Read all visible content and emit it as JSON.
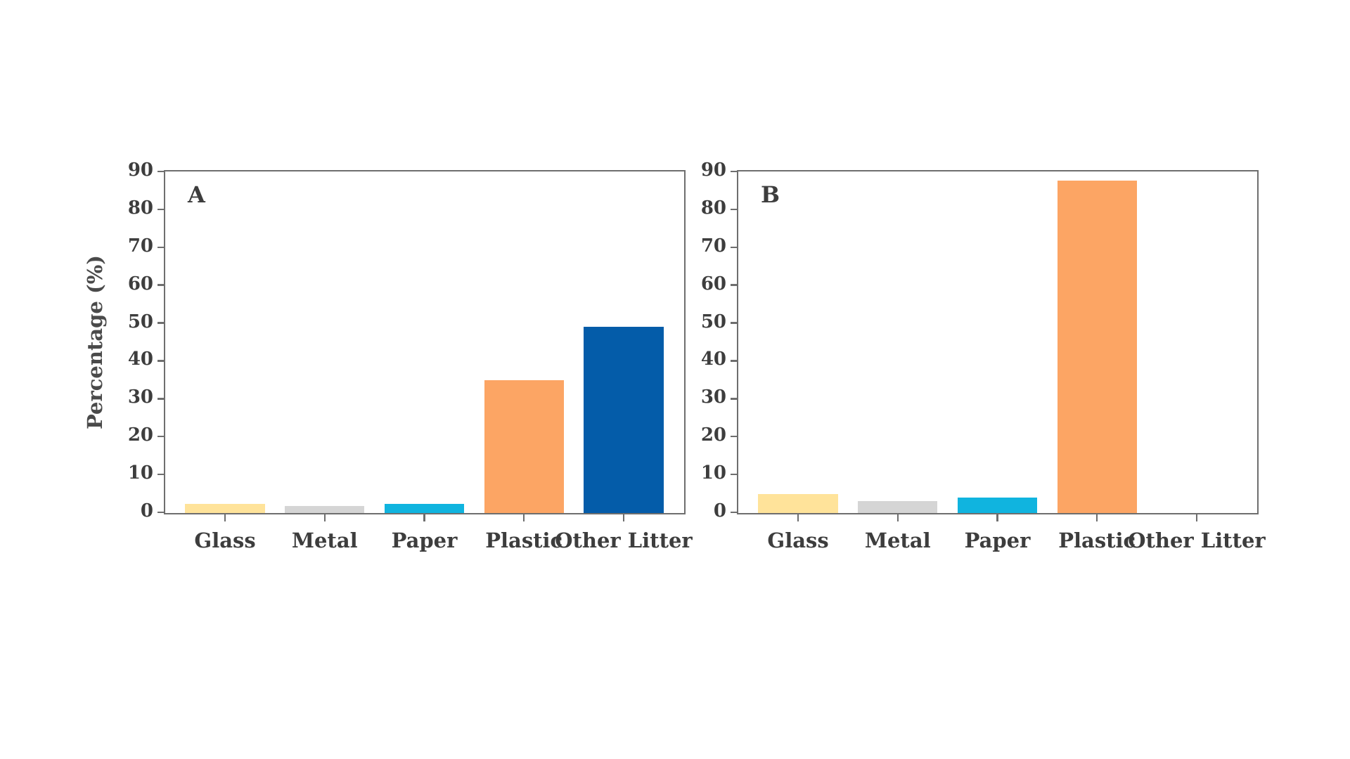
{
  "figure": {
    "y_axis_title": "Percentage (%)",
    "background_color": "#ffffff",
    "text_color": "#3d3d3d",
    "spine_color": "#6e6e6e"
  },
  "chart_data": [
    {
      "type": "bar",
      "panel_label": "A",
      "ylabel": "Percentage (%)",
      "xlabel": "",
      "categories": [
        "Glass",
        "Metal",
        "Paper",
        "Plastic",
        "Other Litter"
      ],
      "values": [
        2.4,
        1.9,
        2.4,
        35.1,
        49.2
      ],
      "bar_colors": [
        "#FFE39A",
        "#D5D5D5",
        "#10B4DF",
        "#FCA564",
        "#045CA9"
      ],
      "ylim": [
        0,
        90
      ],
      "ytick_step": 10,
      "ytick_labels": [
        "0",
        "10",
        "20",
        "30",
        "40",
        "50",
        "60",
        "70",
        "80",
        "90"
      ],
      "grid": false,
      "legend": false
    },
    {
      "type": "bar",
      "panel_label": "B",
      "ylabel": "",
      "xlabel": "",
      "categories": [
        "Glass",
        "Metal",
        "Paper",
        "Plastic",
        "Other Litter"
      ],
      "values": [
        5.1,
        3.1,
        4.1,
        87.7,
        0
      ],
      "bar_colors": [
        "#FFE39A",
        "#D5D5D5",
        "#10B4DF",
        "#FCA564",
        "#045CA9"
      ],
      "ylim": [
        0,
        90
      ],
      "ytick_step": 10,
      "ytick_labels": [
        "0",
        "10",
        "20",
        "30",
        "40",
        "50",
        "60",
        "70",
        "80",
        "90"
      ],
      "grid": false,
      "legend": false
    }
  ]
}
